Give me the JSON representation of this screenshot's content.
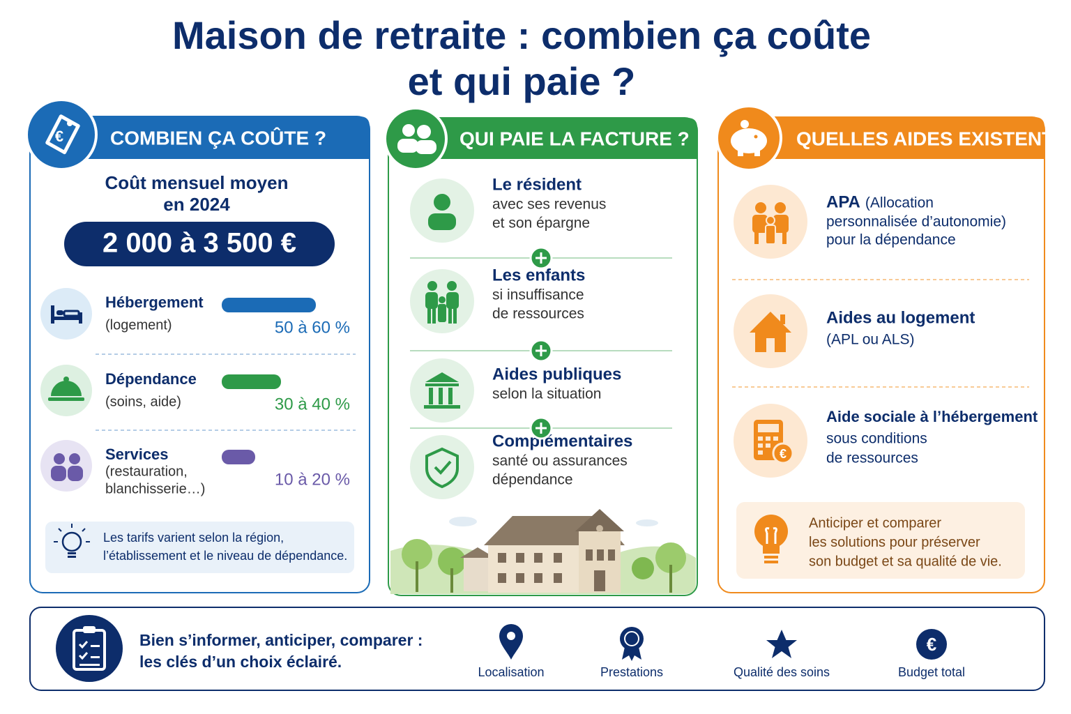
{
  "title_lines": [
    "Maison de retraite : combien ça coûte",
    "et qui paie ?"
  ],
  "cost": {
    "heading": "COMBIEN ÇA COÛTE ?",
    "subtitle_lines": [
      "Coût mensuel moyen",
      "en 2024"
    ],
    "amount": "2 000 à 3 500 €",
    "items": [
      {
        "label": "Hébergement",
        "detail_lines": [
          "(logement)"
        ],
        "share": "50 à 60 %"
      },
      {
        "label": "Dépendance",
        "detail_lines": [
          "(soins, aide)"
        ],
        "share": "30 à 40 %"
      },
      {
        "label": "Services",
        "detail_lines": [
          "(restauration,",
          "blanchisserie…)"
        ],
        "share": "10 à 20 %"
      }
    ],
    "note_lines": [
      "Les tarifs varient selon la région,",
      "l’établissement et le niveau de dépendance."
    ]
  },
  "payers": {
    "heading": "QUI PAIE LA FACTURE ?",
    "items": [
      {
        "title": "Le résident",
        "lines": [
          "avec ses revenus",
          "et son épargne"
        ]
      },
      {
        "title": "Les enfants",
        "lines": [
          "si insuffisance",
          "de ressources"
        ]
      },
      {
        "title": "Aides publiques",
        "lines": [
          "selon la situation"
        ]
      },
      {
        "title": "Complémentaires",
        "lines": [
          "santé ou assurances",
          "dépendance"
        ]
      }
    ]
  },
  "aids": {
    "heading": "QUELLES AIDES EXISTENT ?",
    "items": [
      {
        "title": "APA",
        "lines": [
          "(Allocation",
          "personnalisée d’autonomie)",
          "pour la dépendance"
        ]
      },
      {
        "title": "Aides au logement",
        "lines": [
          "(APL ou ALS)"
        ]
      },
      {
        "title": "Aide sociale à l’hébergement",
        "lines": [
          "sous conditions",
          "de ressources"
        ]
      }
    ],
    "tip_lines": [
      "Anticiper et comparer",
      "les solutions pour préserver",
      "son budget et sa qualité de vie."
    ]
  },
  "footer": {
    "lines": [
      "Bien s’informer, anticiper, comparer :",
      "les clés d’un choix éclairé."
    ],
    "criteria": [
      "Localisation",
      "Prestations",
      "Qualité des soins",
      "Budget total"
    ]
  }
}
